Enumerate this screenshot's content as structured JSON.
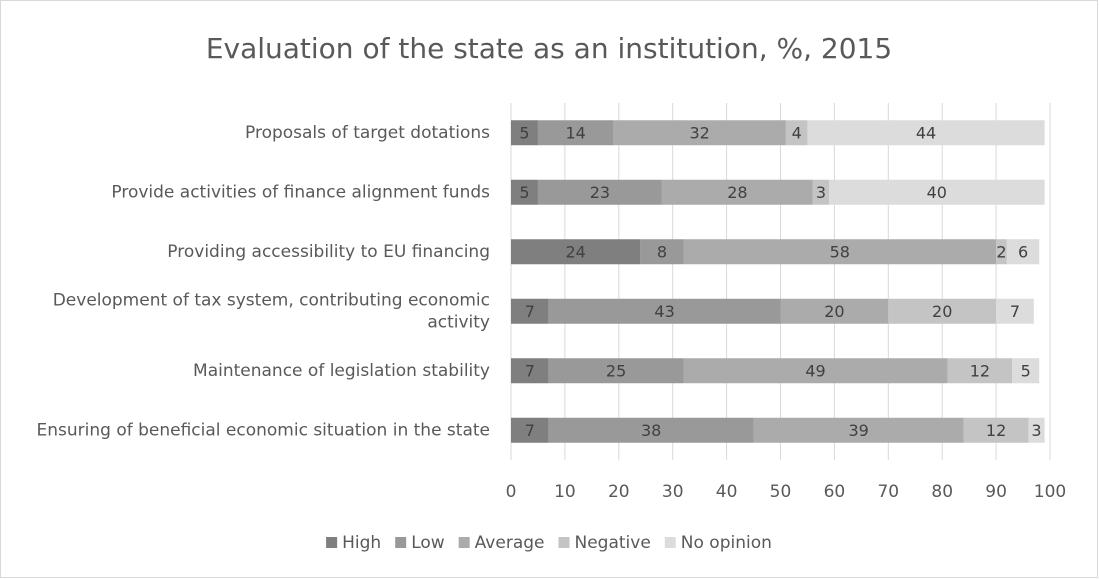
{
  "chart_data": {
    "type": "stacked_bar_horizontal",
    "title": "Evaluation of the state as an institution, %, 2015",
    "categories": [
      "Proposals of target dotations",
      "Provide activities of finance alignment funds",
      "Providing accessibility to EU financing",
      "Development of tax system, contributing economic activity",
      "Maintenance of legislation stability",
      "Ensuring of beneficial economic situation in the state"
    ],
    "series": [
      {
        "name": "High",
        "color": "#7f7f7f",
        "values": [
          5,
          5,
          24,
          7,
          7,
          7
        ]
      },
      {
        "name": "Low",
        "color": "#999999",
        "values": [
          14,
          23,
          8,
          43,
          25,
          38
        ]
      },
      {
        "name": "Average",
        "color": "#ababab",
        "values": [
          32,
          28,
          58,
          20,
          49,
          39
        ]
      },
      {
        "name": "Negative",
        "color": "#c4c4c4",
        "values": [
          4,
          3,
          2,
          20,
          12,
          12
        ]
      },
      {
        "name": "No opinion",
        "color": "#dcdcdc",
        "values": [
          44,
          40,
          6,
          7,
          5,
          3
        ]
      }
    ],
    "xlim": [
      0,
      100
    ],
    "xticks": [
      0,
      10,
      20,
      30,
      40,
      50,
      60,
      70,
      80,
      90,
      100
    ],
    "grid": true,
    "legend": "bottom"
  }
}
